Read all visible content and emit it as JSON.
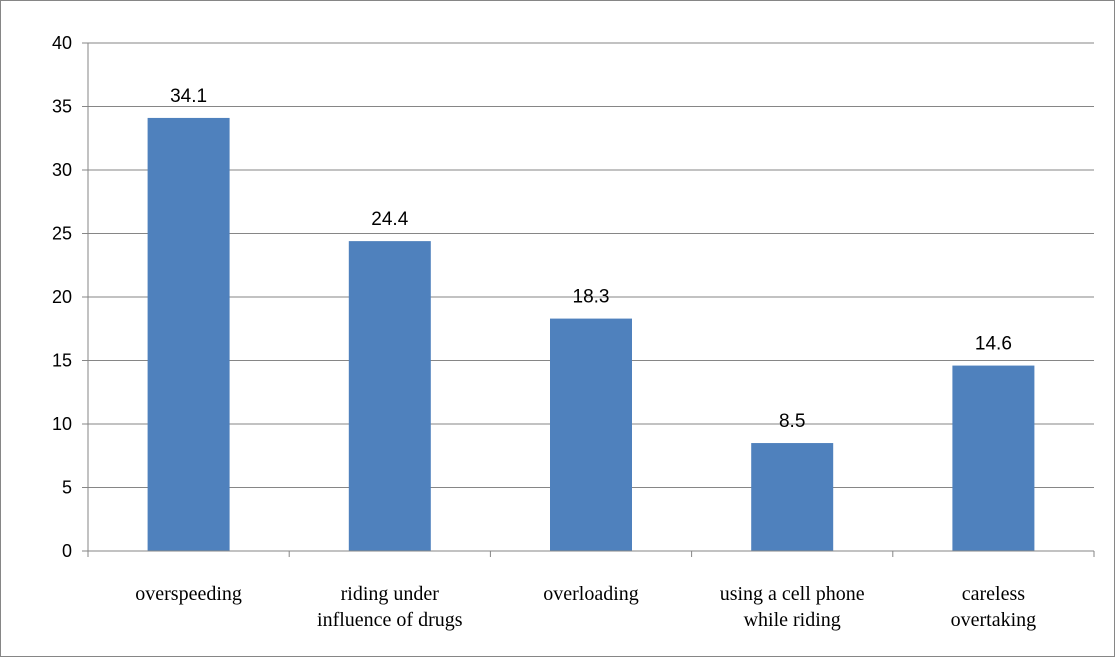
{
  "chart_data": {
    "type": "bar",
    "title": "",
    "xlabel": "",
    "ylabel": "",
    "categories": [
      [
        "overspeeding"
      ],
      [
        "riding under",
        "influence of drugs"
      ],
      [
        "overloading"
      ],
      [
        "using a cell phone",
        "while riding"
      ],
      [
        "careless",
        "overtaking"
      ]
    ],
    "values": [
      34.1,
      24.4,
      18.3,
      8.5,
      14.6
    ],
    "data_labels": [
      "34.1",
      "24.4",
      "18.3",
      "8.5",
      "14.6"
    ],
    "ylim": [
      0,
      40
    ],
    "yticks": [
      "0",
      "5",
      "10",
      "15",
      "20",
      "25",
      "30",
      "35",
      "40"
    ],
    "grid": true,
    "legend": "none",
    "colors": {
      "bar": "#4f81bd",
      "gridline": "#868686",
      "axis": "#868686",
      "text": "#000000"
    }
  }
}
